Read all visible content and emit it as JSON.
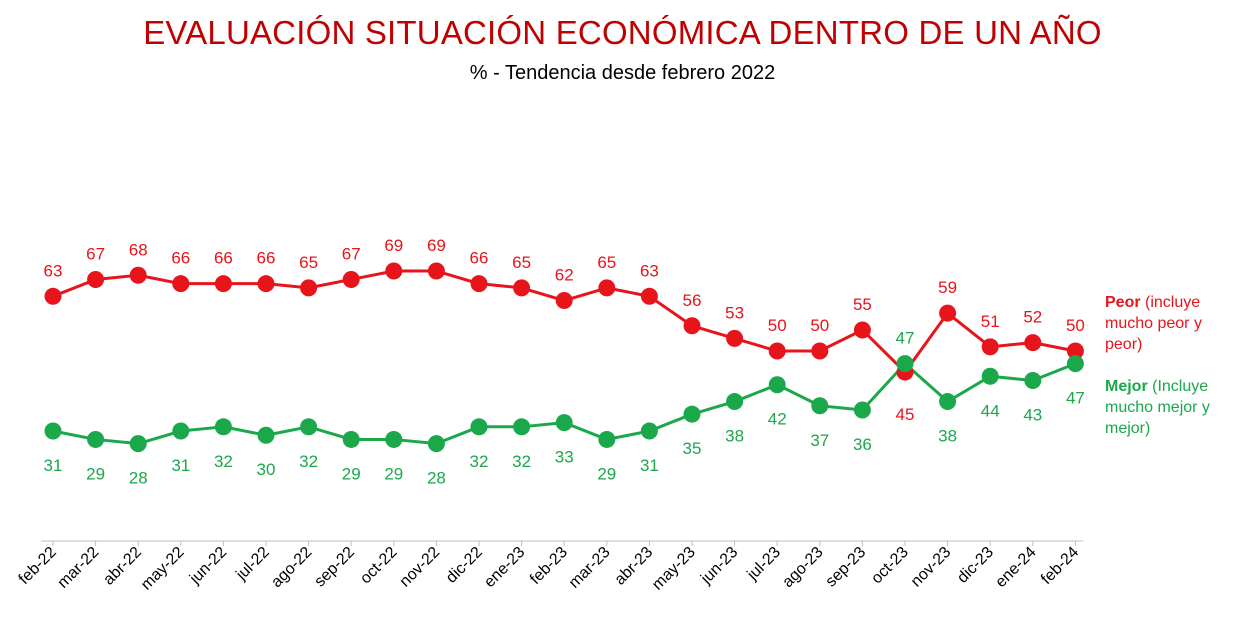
{
  "chart_data": {
    "type": "line",
    "title": "EVALUACIÓN SITUACIÓN ECONÓMICA DENTRO DE UN AÑO",
    "subtitle": "% - Tendencia desde febrero 2022",
    "categories": [
      "feb-22",
      "mar-22",
      "abr-22",
      "may-22",
      "jun-22",
      "jul-22",
      "ago-22",
      "sep-22",
      "oct-22",
      "nov-22",
      "dic-22",
      "ene-23",
      "feb-23",
      "mar-23",
      "abr-23",
      "may-23",
      "jun-23",
      "jul-23",
      "ago-23",
      "sep-23",
      "oct-23",
      "nov-23",
      "dic-23",
      "ene-24",
      "feb-24"
    ],
    "series": [
      {
        "name": "Peor",
        "legend_bold": "Peor",
        "legend_rest": " (incluye mucho peor y peor)",
        "color": "#e8141c",
        "label_position": "above",
        "values": [
          63,
          67,
          68,
          66,
          66,
          66,
          65,
          67,
          69,
          69,
          66,
          65,
          62,
          65,
          63,
          56,
          53,
          50,
          50,
          55,
          45,
          59,
          51,
          52,
          50
        ]
      },
      {
        "name": "Mejor",
        "legend_bold": "Mejor",
        "legend_rest": " (Incluye mucho mejor y mejor)",
        "color": "#1aa84a",
        "label_position": "below",
        "values": [
          31,
          29,
          28,
          31,
          32,
          30,
          32,
          29,
          29,
          28,
          32,
          32,
          33,
          29,
          31,
          35,
          38,
          42,
          37,
          36,
          47,
          38,
          44,
          43,
          47
        ]
      }
    ],
    "xlabel": "",
    "ylabel": "",
    "ylim": [
      0,
      100
    ],
    "grid": false,
    "legend_position": "right"
  }
}
